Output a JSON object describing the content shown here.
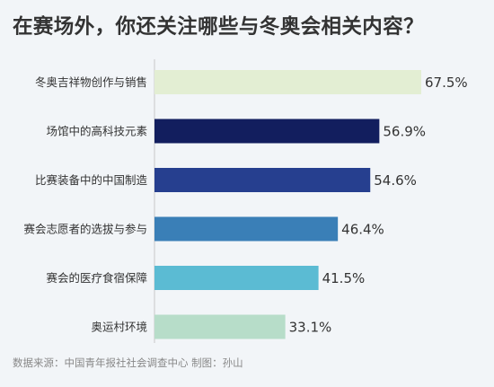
{
  "title": "在赛场外，你还关注哪些与冬奥会相关内容？",
  "source": "数据来源：中国青年报社社会调查中心  制图：孙山",
  "chart_data": {
    "type": "bar",
    "orientation": "horizontal",
    "title": "在赛场外，你还关注哪些与冬奥会相关内容？",
    "xlabel": "",
    "ylabel": "",
    "unit": "%",
    "xlim": [
      0,
      70
    ],
    "grid": false,
    "legend": "none",
    "categories": [
      "冬奥吉祥物创作与销售",
      "场馆中的高科技元素",
      "比赛装备中的中国制造",
      "赛会志愿者的选拔与参与",
      "赛会的医疗食宿保障",
      "奥运村环境"
    ],
    "values": [
      67.5,
      56.9,
      54.6,
      46.4,
      41.5,
      33.1
    ],
    "labels": [
      "67.5%",
      "56.9%",
      "54.6%",
      "46.4%",
      "41.5%",
      "33.1%"
    ],
    "colors": [
      "#e3eed3",
      "#121e5e",
      "#263f8f",
      "#3a7fb7",
      "#5bbbd3",
      "#b7ddc9"
    ]
  }
}
